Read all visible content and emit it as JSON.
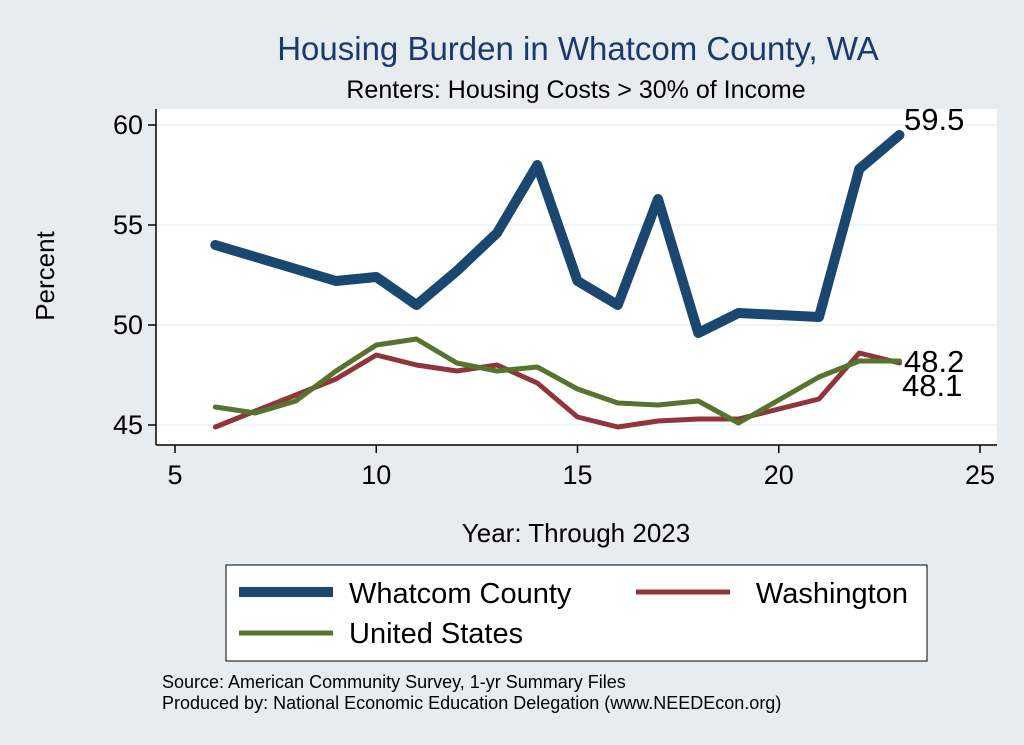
{
  "chart_data": {
    "type": "line",
    "title": "Housing Burden in Whatcom County, WA",
    "subtitle": "Renters: Housing Costs > 30% of Income",
    "xlabel": "Year: Through 2023",
    "ylabel": "Percent",
    "xlim": [
      5,
      25
    ],
    "ylim": [
      45,
      60
    ],
    "xticks": [
      5,
      10,
      15,
      20,
      25
    ],
    "yticks": [
      45,
      50,
      55,
      60
    ],
    "grid": true,
    "legend_position": "bottom",
    "series": [
      {
        "name": "Whatcom County",
        "color": "#1a476f",
        "x": [
          6,
          7,
          8,
          9,
          10,
          11,
          12,
          13,
          14,
          15,
          16,
          17,
          18,
          19,
          21,
          22,
          23
        ],
        "y": [
          54.0,
          53.4,
          52.8,
          52.2,
          52.4,
          51.0,
          52.7,
          54.6,
          58.0,
          52.2,
          51.0,
          56.3,
          49.6,
          50.6,
          50.4,
          57.8,
          59.5
        ],
        "end_label": "59.5"
      },
      {
        "name": "Washington",
        "color": "#90353b",
        "x": [
          6,
          7,
          8,
          9,
          10,
          11,
          12,
          13,
          14,
          15,
          16,
          17,
          18,
          19,
          21,
          22,
          23
        ],
        "y": [
          44.9,
          45.7,
          46.5,
          47.3,
          48.5,
          48.0,
          47.7,
          48.0,
          47.1,
          45.4,
          44.9,
          45.2,
          45.3,
          45.3,
          46.3,
          48.6,
          48.1
        ],
        "end_label": "48.1"
      },
      {
        "name": "United States",
        "color": "#55752f",
        "x": [
          6,
          7,
          8,
          9,
          10,
          11,
          12,
          13,
          14,
          15,
          16,
          17,
          18,
          19,
          21,
          22,
          23
        ],
        "y": [
          45.9,
          45.6,
          46.2,
          47.7,
          49.0,
          49.3,
          48.1,
          47.7,
          47.9,
          46.8,
          46.1,
          46.0,
          46.2,
          45.1,
          47.4,
          48.2,
          48.2
        ],
        "end_label": "48.2"
      }
    ]
  },
  "footer": {
    "source": "Source: American Community Survey, 1-yr Summary Files",
    "produced_by": "Produced by: National Economic Education Delegation (www.NEEDEcon.org)"
  }
}
